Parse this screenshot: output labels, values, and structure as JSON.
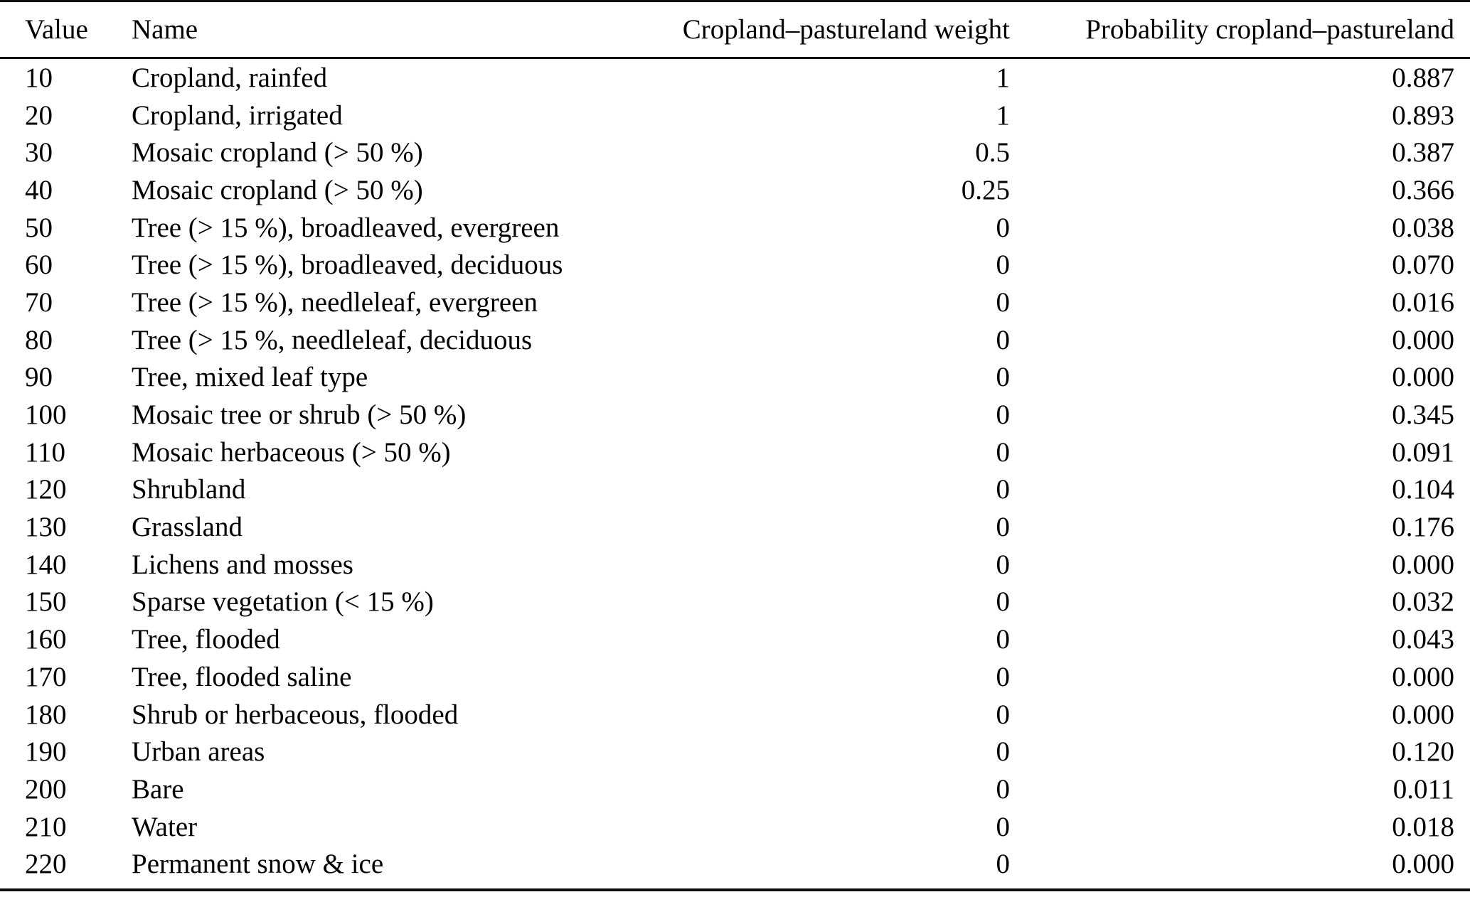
{
  "page": {
    "background": "#ffffff",
    "text_color": "#000000",
    "rule_color": "#0d0d0d"
  },
  "table": {
    "columns": [
      {
        "id": "value",
        "label": "Value",
        "align": "left"
      },
      {
        "id": "name",
        "label": "Name",
        "align": "left"
      },
      {
        "id": "weight",
        "label": "Cropland–pastureland weight",
        "align": "right"
      },
      {
        "id": "probability",
        "label": "Probability cropland–pastureland",
        "align": "right"
      }
    ],
    "rows": [
      {
        "value": "10",
        "name": "Cropland, rainfed",
        "weight": "1",
        "probability": "0.887"
      },
      {
        "value": "20",
        "name": "Cropland, irrigated",
        "weight": "1",
        "probability": "0.893"
      },
      {
        "value": "30",
        "name": "Mosaic cropland (> 50 %)",
        "weight": "0.5",
        "probability": "0.387"
      },
      {
        "value": "40",
        "name": "Mosaic cropland (> 50 %)",
        "weight": "0.25",
        "probability": "0.366"
      },
      {
        "value": "50",
        "name": "Tree (> 15 %), broadleaved, evergreen",
        "weight": "0",
        "probability": "0.038"
      },
      {
        "value": "60",
        "name": "Tree (> 15 %), broadleaved, deciduous",
        "weight": "0",
        "probability": "0.070"
      },
      {
        "value": "70",
        "name": "Tree (> 15 %), needleleaf, evergreen",
        "weight": "0",
        "probability": "0.016"
      },
      {
        "value": "80",
        "name": "Tree (> 15 %, needleleaf, deciduous",
        "weight": "0",
        "probability": "0.000"
      },
      {
        "value": "90",
        "name": "Tree, mixed leaf type",
        "weight": "0",
        "probability": "0.000"
      },
      {
        "value": "100",
        "name": "Mosaic tree or shrub (> 50 %)",
        "weight": "0",
        "probability": "0.345"
      },
      {
        "value": "110",
        "name": "Mosaic herbaceous (> 50 %)",
        "weight": "0",
        "probability": "0.091"
      },
      {
        "value": "120",
        "name": "Shrubland",
        "weight": "0",
        "probability": "0.104"
      },
      {
        "value": "130",
        "name": "Grassland",
        "weight": "0",
        "probability": "0.176"
      },
      {
        "value": "140",
        "name": "Lichens and mosses",
        "weight": "0",
        "probability": "0.000"
      },
      {
        "value": "150",
        "name": "Sparse vegetation (< 15 %)",
        "weight": "0",
        "probability": "0.032"
      },
      {
        "value": "160",
        "name": "Tree, flooded",
        "weight": "0",
        "probability": "0.043"
      },
      {
        "value": "170",
        "name": "Tree, flooded saline",
        "weight": "0",
        "probability": "0.000"
      },
      {
        "value": "180",
        "name": "Shrub or herbaceous, flooded",
        "weight": "0",
        "probability": "0.000"
      },
      {
        "value": "190",
        "name": "Urban areas",
        "weight": "0",
        "probability": "0.120"
      },
      {
        "value": "200",
        "name": "Bare",
        "weight": "0",
        "probability": "0.011"
      },
      {
        "value": "210",
        "name": "Water",
        "weight": "0",
        "probability": "0.018"
      },
      {
        "value": "220",
        "name": "Permanent snow & ice",
        "weight": "0",
        "probability": "0.000"
      }
    ]
  }
}
